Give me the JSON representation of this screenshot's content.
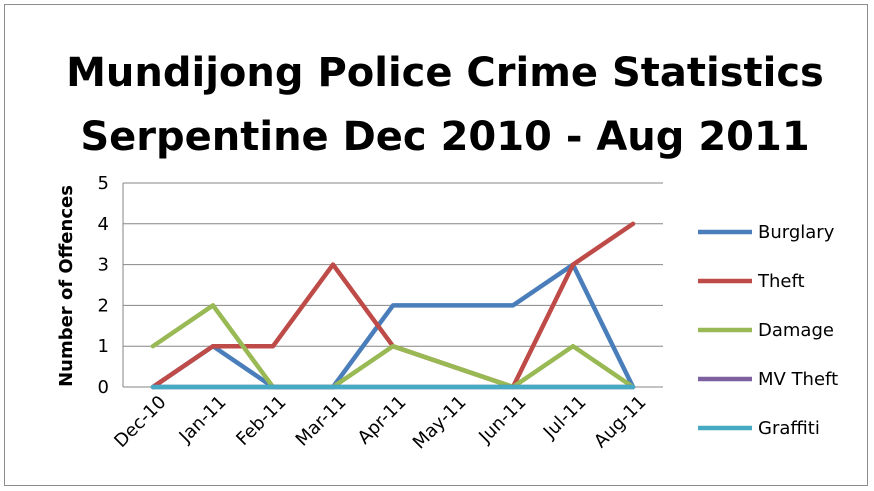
{
  "chart_data": {
    "type": "line",
    "title_lines": [
      "Mundijong Police Crime Statistics",
      "Serpentine Dec 2010 - Aug 2011"
    ],
    "xlabel": "",
    "ylabel": "Number of Offences",
    "categories": [
      "Dec-10",
      "Jan-11",
      "Feb-11",
      "Mar-11",
      "Apr-11",
      "May-11",
      "Jun-11",
      "Jul-11",
      "Aug-11"
    ],
    "ylim": [
      0,
      5
    ],
    "yticks": [
      "0",
      "1",
      "2",
      "3",
      "4",
      "5"
    ],
    "grid": true,
    "legend_position": "right",
    "series": [
      {
        "name": "Burglary",
        "color": "#4a7ebb",
        "values": [
          0,
          1,
          0,
          0,
          2,
          2,
          2,
          3,
          0
        ]
      },
      {
        "name": "Theft",
        "color": "#be4b48",
        "values": [
          0,
          1,
          1,
          3,
          1,
          0.5,
          0,
          3,
          4
        ]
      },
      {
        "name": "Damage",
        "color": "#98b954",
        "values": [
          1,
          2,
          0,
          0,
          1,
          0.5,
          0,
          1,
          0
        ]
      },
      {
        "name": "MV Theft",
        "color": "#7d60a0",
        "values": [
          0,
          0,
          0,
          0,
          0,
          0,
          0,
          0,
          0
        ]
      },
      {
        "name": "Graffiti",
        "color": "#46aac5",
        "values": [
          0,
          0,
          0,
          0,
          0,
          0,
          0,
          0,
          0
        ]
      }
    ]
  }
}
